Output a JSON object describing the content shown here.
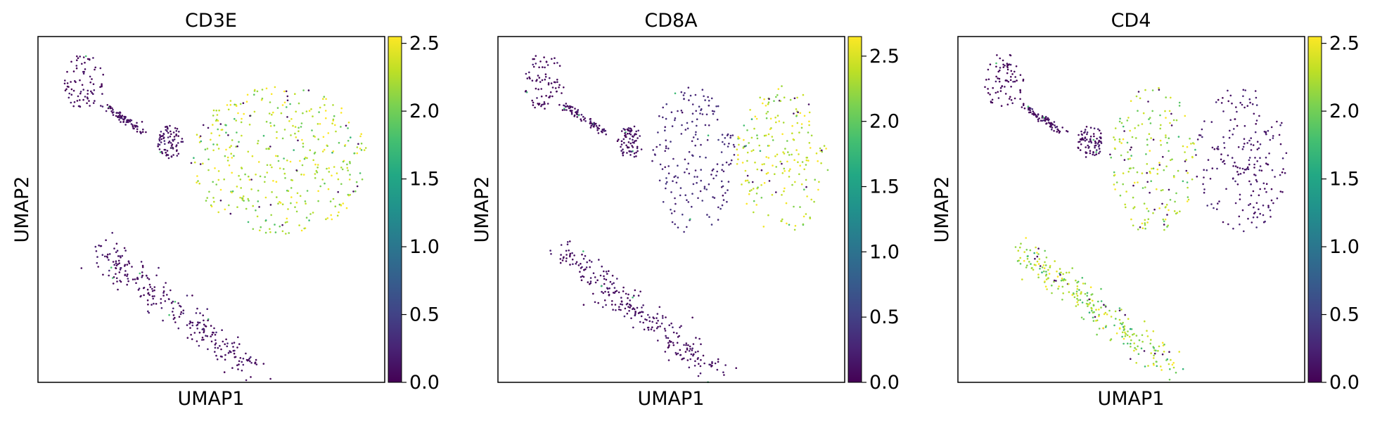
{
  "chart_data": [
    {
      "type": "scatter",
      "title": "CD3E",
      "xlabel": "UMAP1",
      "ylabel": "UMAP2",
      "colorbar": {
        "cmap": "viridis",
        "range": [
          0,
          2.55
        ],
        "ticks": [
          "0.0",
          "0.5",
          "1.0",
          "1.5",
          "2.0",
          "2.5"
        ]
      },
      "clusters": [
        {
          "name": "top-left island",
          "x": [
            0.8,
            2.0
          ],
          "y": [
            8.2,
            10.0
          ],
          "level": 0.05
        },
        {
          "name": "bridge",
          "x": [
            2.0,
            3.2
          ],
          "y": [
            7.6,
            8.4
          ],
          "level": 0.1
        },
        {
          "name": "small blob",
          "x": [
            3.6,
            4.4
          ],
          "y": [
            6.8,
            7.8
          ],
          "level": 0.1
        },
        {
          "name": "main cluster",
          "x": [
            4.6,
            10.0
          ],
          "y": [
            4.5,
            9.0
          ],
          "level": 2.25
        },
        {
          "name": "bottom trail",
          "x": [
            1.9,
            6.5
          ],
          "y": [
            0.4,
            4.0
          ],
          "level": 0.1
        }
      ]
    },
    {
      "type": "scatter",
      "title": "CD8A",
      "xlabel": "UMAP1",
      "ylabel": "UMAP2",
      "colorbar": {
        "cmap": "viridis",
        "range": [
          0,
          2.65
        ],
        "ticks": [
          "0.0",
          "0.5",
          "1.0",
          "1.5",
          "2.0",
          "2.5"
        ]
      },
      "clusters": [
        {
          "name": "top-left island",
          "x": [
            0.8,
            2.0
          ],
          "y": [
            8.2,
            10.0
          ],
          "level": 0.05
        },
        {
          "name": "bridge",
          "x": [
            2.0,
            3.2
          ],
          "y": [
            7.6,
            8.4
          ],
          "level": 0.1
        },
        {
          "name": "small blob",
          "x": [
            3.6,
            4.4
          ],
          "y": [
            6.8,
            7.8
          ],
          "level": 0.1
        },
        {
          "name": "main cluster left",
          "x": [
            4.6,
            7.2
          ],
          "y": [
            4.5,
            9.0
          ],
          "level": 0.3
        },
        {
          "name": "main cluster right",
          "x": [
            7.2,
            10.0
          ],
          "y": [
            4.5,
            9.0
          ],
          "level": 2.4
        },
        {
          "name": "bottom trail",
          "x": [
            1.9,
            6.5
          ],
          "y": [
            0.4,
            4.0
          ],
          "level": 0.1
        }
      ]
    },
    {
      "type": "scatter",
      "title": "CD4",
      "xlabel": "UMAP1",
      "ylabel": "UMAP2",
      "colorbar": {
        "cmap": "viridis",
        "range": [
          0,
          2.55
        ],
        "ticks": [
          "0.0",
          "0.5",
          "1.0",
          "1.5",
          "2.0",
          "2.5"
        ]
      },
      "clusters": [
        {
          "name": "top-left island",
          "x": [
            0.8,
            2.0
          ],
          "y": [
            8.2,
            10.0
          ],
          "level": 0.05
        },
        {
          "name": "bridge",
          "x": [
            2.0,
            3.2
          ],
          "y": [
            7.6,
            8.4
          ],
          "level": 0.1
        },
        {
          "name": "small blob",
          "x": [
            3.6,
            4.4
          ],
          "y": [
            6.8,
            7.8
          ],
          "level": 0.1
        },
        {
          "name": "main cluster left",
          "x": [
            4.6,
            7.2
          ],
          "y": [
            4.5,
            9.0
          ],
          "level": 2.2
        },
        {
          "name": "main cluster right",
          "x": [
            7.2,
            10.0
          ],
          "y": [
            4.5,
            9.0
          ],
          "level": 0.15
        },
        {
          "name": "bottom trail",
          "x": [
            1.9,
            6.5
          ],
          "y": [
            0.4,
            4.0
          ],
          "level": 2.2
        }
      ]
    }
  ]
}
